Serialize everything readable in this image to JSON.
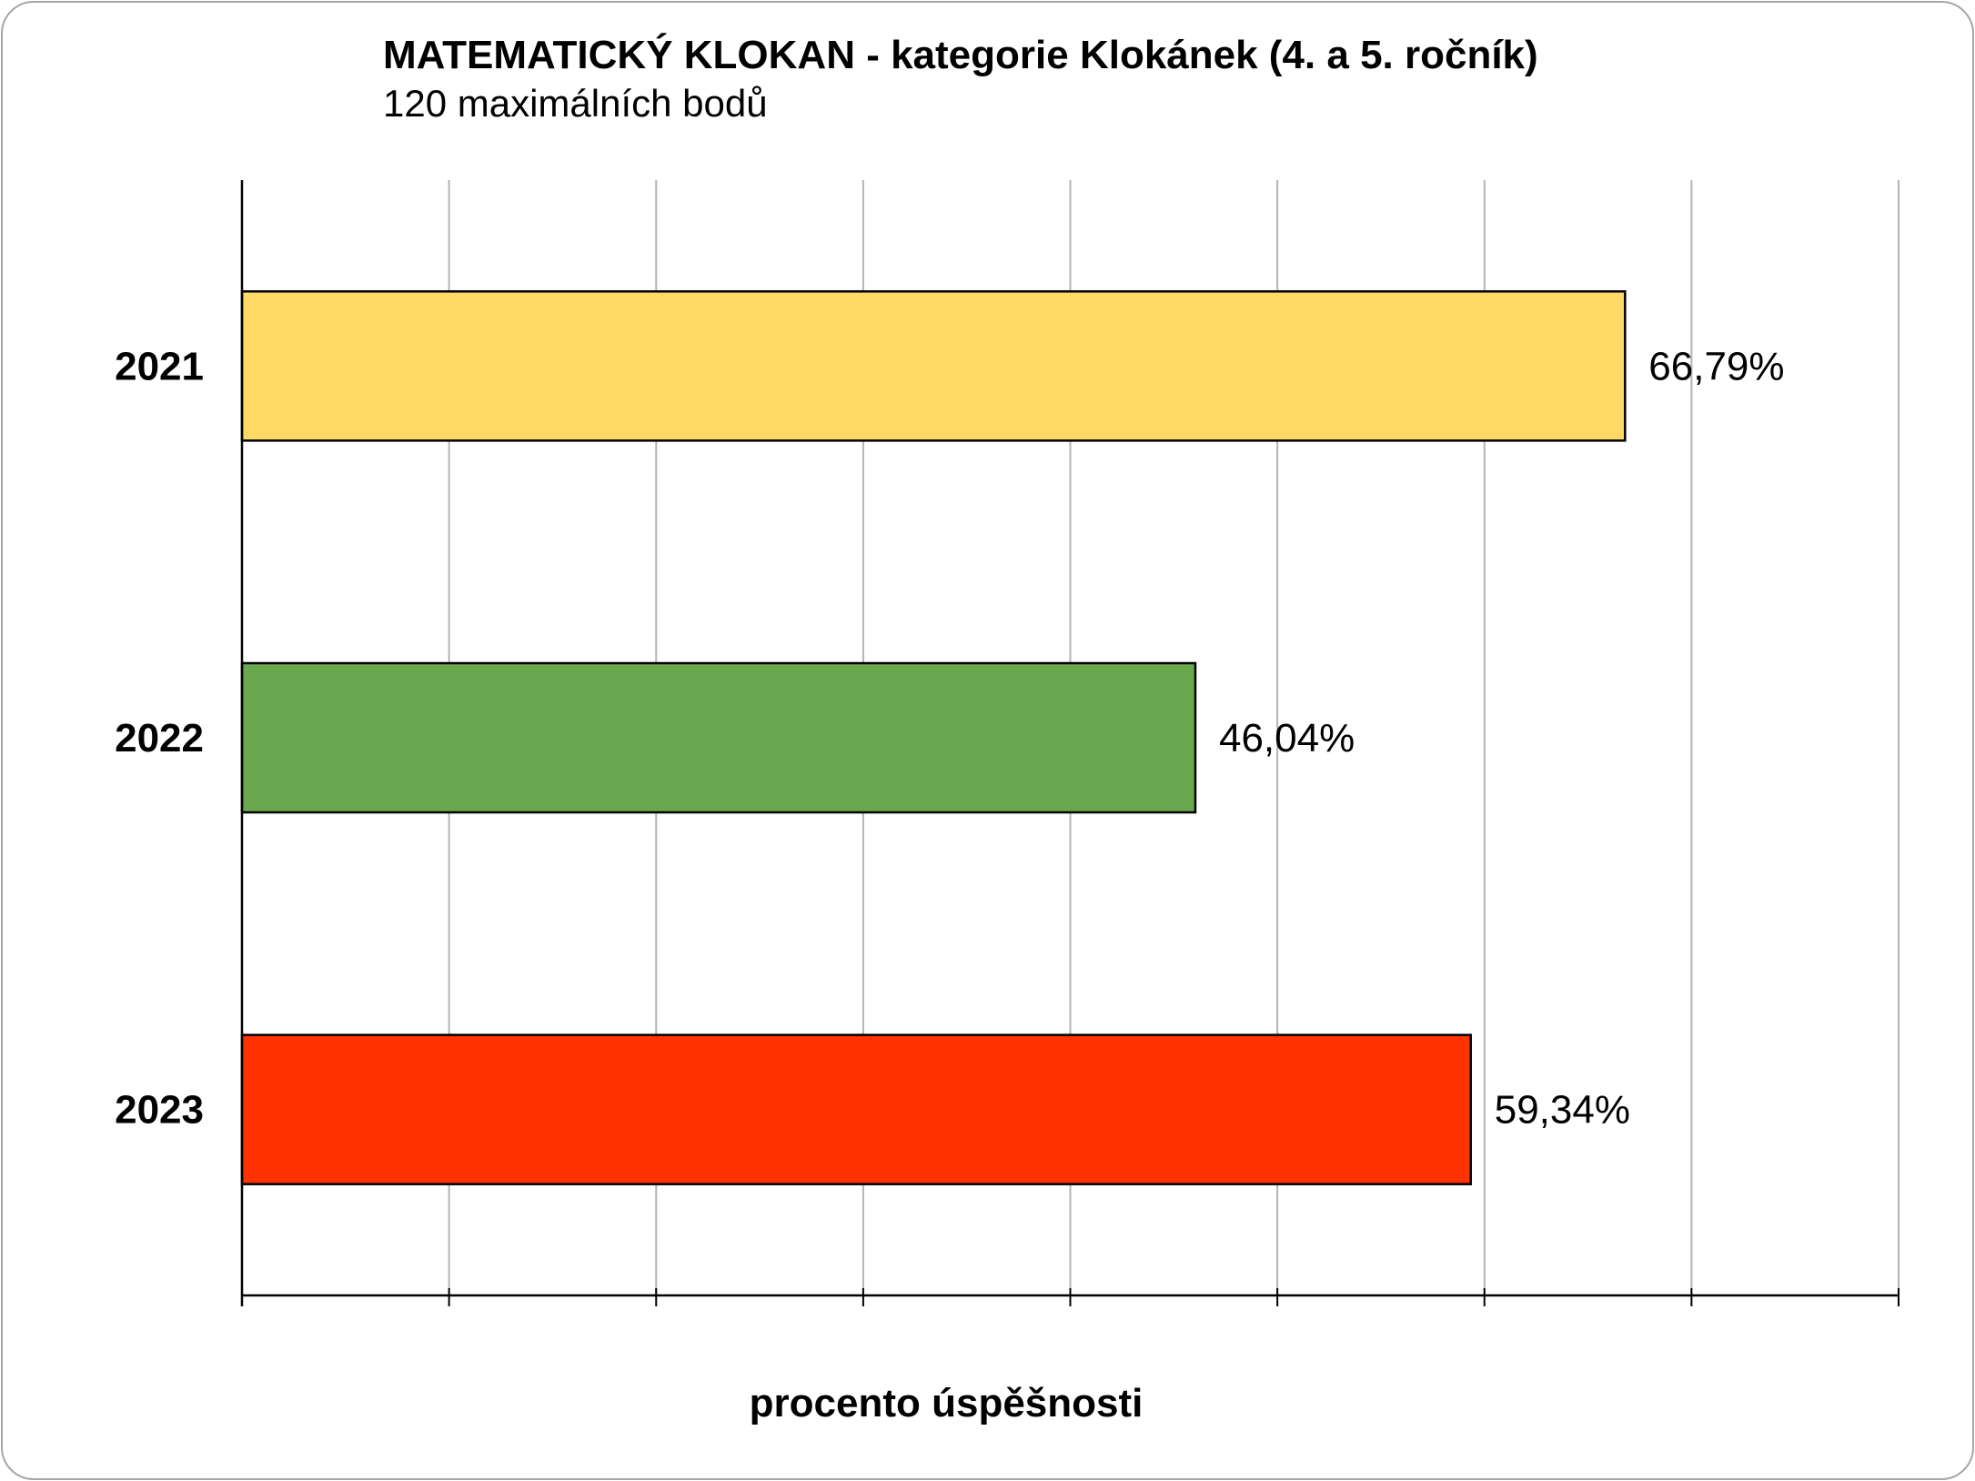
{
  "chart_data": {
    "type": "bar",
    "orientation": "horizontal",
    "title": "MATEMATICKÝ KLOKAN - kategorie Klokánek (4. a 5. ročník)",
    "subtitle": "120 maximálních bodů",
    "xlabel": "procento úspěšnosti",
    "ylabel": "",
    "categories": [
      "2021",
      "2022",
      "2023"
    ],
    "values": [
      66.79,
      46.04,
      59.34
    ],
    "value_labels": [
      "66,79%",
      "46,04%",
      "59,34%"
    ],
    "colors": [
      "#FFD966",
      "#6AA84F",
      "#FF3300"
    ],
    "xlim": [
      0,
      80
    ],
    "x_tick_step": 10,
    "x_tick_labels_shown": false,
    "grid": "vertical",
    "legend": "none"
  }
}
